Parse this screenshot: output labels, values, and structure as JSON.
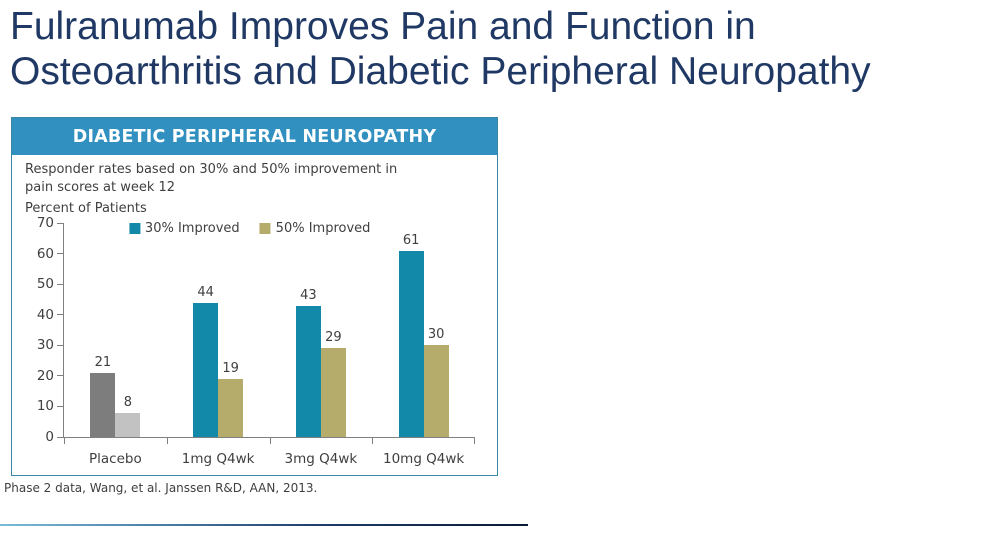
{
  "page": {
    "title_line1": "Fulranumab Improves Pain and Function in",
    "title_line2": "Osteoarthritis and Diabetic Peripheral Neuropathy",
    "title_color": "#1F3864",
    "footnote": "Phase 2 data, Wang, et al. Janssen R&D, AAN, 2013."
  },
  "panel": {
    "header": "DIABETIC PERIPHERAL NEUROPATHY",
    "header_bg": "#3190BF",
    "border_color": "#3A87A5",
    "subtitle_line1": "Responder rates based on 30% and 50% improvement in",
    "subtitle_line2": "pain scores at week 12"
  },
  "chart_data": {
    "type": "bar",
    "title": "Responder rates based on 30% and 50% improvement in pain scores at week 12",
    "ylabel": "Percent of Patients",
    "xlabel": "",
    "categories": [
      "Placebo",
      "1mg Q4wk",
      "3mg Q4wk",
      "10mg Q4wk"
    ],
    "series": [
      {
        "name": "30% Improved",
        "values": [
          21,
          44,
          43,
          61
        ],
        "legend_color": "#1289A9",
        "bar_colors": [
          "#7D7D7D",
          "#1289A9",
          "#1289A9",
          "#1289A9"
        ]
      },
      {
        "name": "50% Improved",
        "values": [
          8,
          19,
          29,
          30
        ],
        "legend_color": "#B5AB6B",
        "bar_colors": [
          "#C2C2C2",
          "#B5AB6B",
          "#B5AB6B",
          "#B5AB6B"
        ]
      }
    ],
    "yticks": [
      0,
      10,
      20,
      30,
      40,
      50,
      60,
      70
    ],
    "ylim": [
      0,
      70
    ],
    "grid": false,
    "legend_position": "top-center",
    "axis_color": "#808080"
  }
}
